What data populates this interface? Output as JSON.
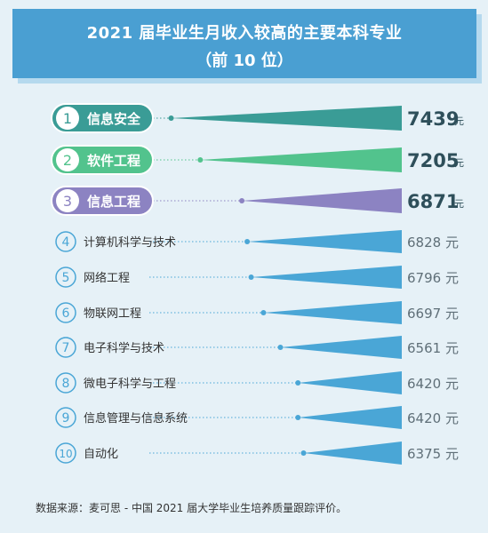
{
  "header": {
    "title": "2021 届毕业生月收入较高的主要本科专业",
    "subtitle": "（前 10 位）"
  },
  "source": "数据来源：麦可思 - 中国 2021 届大学毕业生培养质量跟踪评价。",
  "colors": {
    "background": "#e6f1f7",
    "banner": "#4a9fd2",
    "rank1": "#3a9c96",
    "rank2": "#52c38d",
    "rank3": "#8c83c2",
    "others": "#4aa6d6"
  },
  "chart_data": {
    "type": "bar",
    "title": "2021 届毕业生月收入较高的主要本科专业（前 10 位）",
    "unit": "元",
    "ranks": [
      "1",
      "2",
      "3",
      "4",
      "5",
      "6",
      "7",
      "8",
      "9",
      "10"
    ],
    "categories": [
      "信息安全",
      "软件工程",
      "信息工程",
      "计算机科学与技术",
      "网络工程",
      "物联网工程",
      "电子科学与技术",
      "微电子科学与工程",
      "信息管理与信息系统",
      "自动化"
    ],
    "values": [
      7439,
      7205,
      6871,
      6828,
      6796,
      6697,
      6561,
      6420,
      6420,
      6375
    ]
  }
}
